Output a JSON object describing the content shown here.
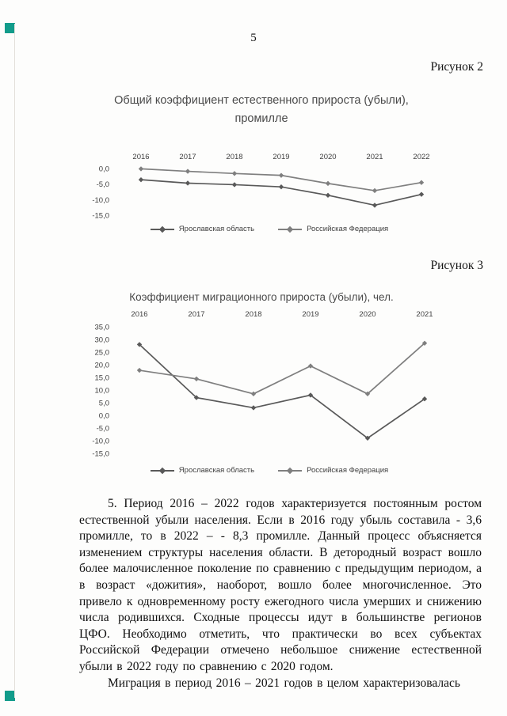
{
  "page": {
    "number": "5",
    "artifact_color": "#129c8b"
  },
  "figure2": {
    "caption": "Рисунок 2"
  },
  "figure3": {
    "caption": "Рисунок 3"
  },
  "chart_data": [
    {
      "type": "line",
      "title": "Общий коэффициент естественного прироста (убыли), промилле",
      "title_line1": "Общий коэффициент естественного прироста (убыли),",
      "title_line2": "промилле",
      "categories": [
        "2016",
        "2017",
        "2018",
        "2019",
        "2020",
        "2021",
        "2022"
      ],
      "series": [
        {
          "name": "Ярославская область",
          "color": "#595959",
          "values": [
            -3.6,
            -4.7,
            -5.2,
            -5.9,
            -8.6,
            -11.8,
            -8.3
          ]
        },
        {
          "name": "Российская Федерация",
          "color": "#7f7f7f",
          "values": [
            -0.1,
            -0.9,
            -1.6,
            -2.2,
            -4.8,
            -7.1,
            -4.5
          ]
        }
      ],
      "y_ticks": [
        "0,0",
        "-5,0",
        "-10,0",
        "-15,0"
      ],
      "ylim": [
        -15,
        0
      ],
      "xlabel": "",
      "ylabel": "",
      "grid": false,
      "legend_position": "bottom"
    },
    {
      "type": "line",
      "title": "Коэффициент миграционного прироста (убыли), чел.",
      "categories": [
        "2016",
        "2017",
        "2018",
        "2019",
        "2020",
        "2021"
      ],
      "series": [
        {
          "name": "Ярославская область",
          "color": "#595959",
          "values": [
            28.0,
            7.0,
            3.0,
            8.0,
            -9.0,
            6.5
          ]
        },
        {
          "name": "Российская Федерация",
          "color": "#7f7f7f",
          "values": [
            17.8,
            14.4,
            8.5,
            19.5,
            8.5,
            28.5
          ]
        }
      ],
      "y_ticks": [
        "35,0",
        "30,0",
        "25,0",
        "20,0",
        "15,0",
        "10,0",
        "5,0",
        "0,0",
        "-5,0",
        "-10,0",
        "-15,0"
      ],
      "ylim": [
        -15,
        35
      ],
      "xlabel": "",
      "ylabel": "",
      "grid": false,
      "legend_position": "bottom"
    }
  ],
  "body": {
    "paragraph1": "5. Период 2016 – 2022 годов характеризуется постоянным ростом естественной убыли населения. Если в 2016 году убыль составила - 3,6 промилле, то в 2022 – - 8,3 промилле. Данный процесс объясняется изменением структуры населения области. В детородный возраст вошло более малочисленное поколение по сравнению с предыдущим периодом, а в возраст «дожития», наоборот, вошло более многочисленное. Это привело к одновременному росту ежегодного числа умерших и снижению числа родившихся. Сходные процессы идут в большинстве регионов ЦФО. Необходимо отметить, что практически во всех субъектах Российской Федерации отмечено небольшое снижение естественной убыли в 2022 году по сравнению с 2020 годом.",
    "paragraph2": "Миграция в период 2016 – 2021 годов в целом характеризовалась"
  }
}
